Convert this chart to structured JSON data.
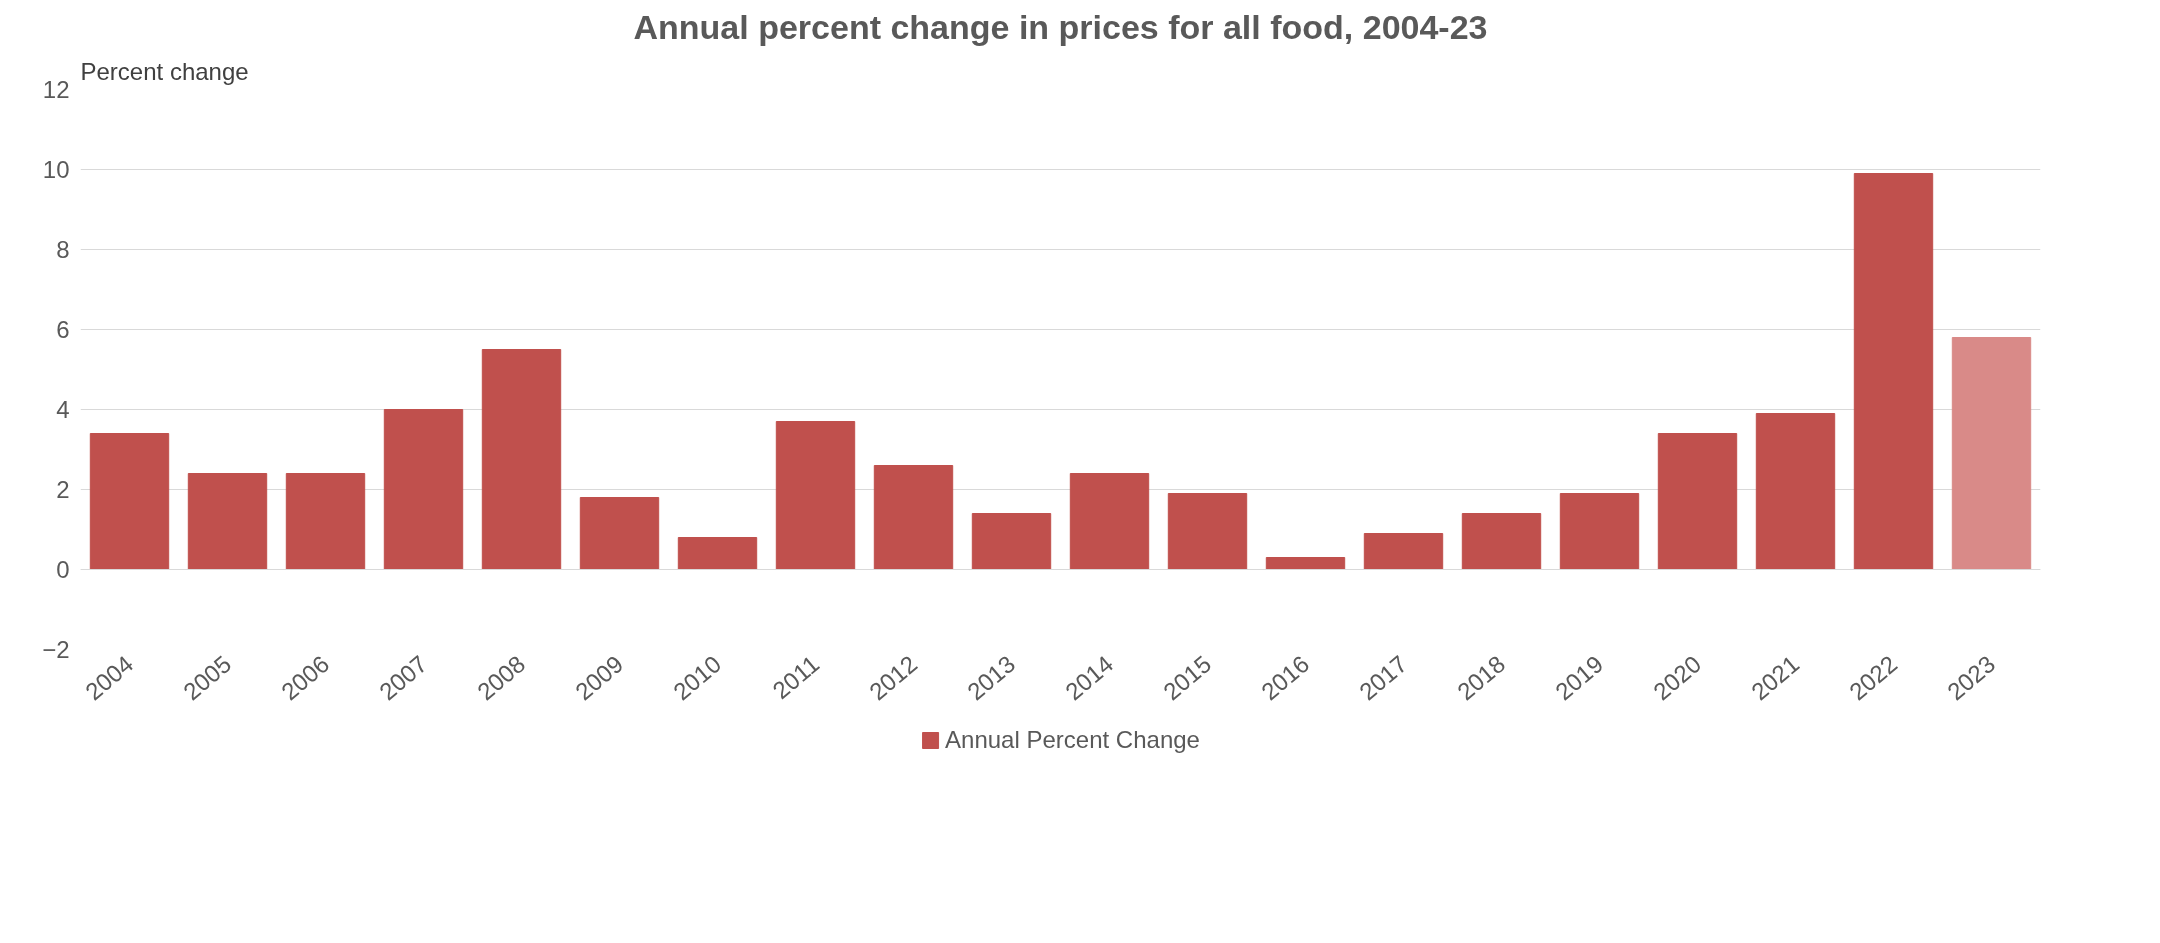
{
  "chart_data": {
    "type": "bar",
    "title": "Annual percent change in prices for all food, 2004-23",
    "ylabel": "Percent change",
    "categories": [
      "2004",
      "2005",
      "2006",
      "2007",
      "2008",
      "2009",
      "2010",
      "2011",
      "2012",
      "2013",
      "2014",
      "2015",
      "2016",
      "2017",
      "2018",
      "2019",
      "2020",
      "2021",
      "2022",
      "2023"
    ],
    "series": [
      {
        "name": "Annual Percent Change",
        "color": "#c0504d",
        "colors": [
          "#c0504d",
          "#c0504d",
          "#c0504d",
          "#c0504d",
          "#c0504d",
          "#c0504d",
          "#c0504d",
          "#c0504d",
          "#c0504d",
          "#c0504d",
          "#c0504d",
          "#c0504d",
          "#c0504d",
          "#c0504d",
          "#c0504d",
          "#c0504d",
          "#c0504d",
          "#c0504d",
          "#c0504d",
          "#d98a88"
        ],
        "values": [
          3.4,
          2.4,
          2.4,
          4.0,
          5.5,
          1.8,
          0.8,
          3.7,
          2.6,
          1.4,
          2.4,
          1.9,
          0.3,
          0.9,
          1.4,
          1.9,
          3.4,
          3.9,
          9.9,
          5.8
        ]
      }
    ],
    "ylim": [
      -2,
      12
    ],
    "yticks": [
      -2,
      0,
      2,
      4,
      6,
      8,
      10,
      12
    ],
    "grid": "y",
    "legend": "bottom"
  }
}
